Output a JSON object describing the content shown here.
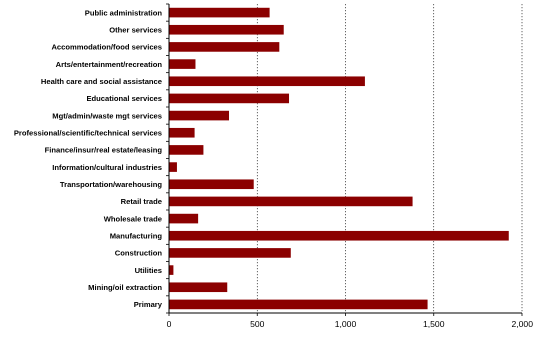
{
  "chart_data": {
    "type": "bar",
    "orientation": "horizontal",
    "categories": [
      "Public administration",
      "Other services",
      "Accommodation/food services",
      "Arts/entertainment/recreation",
      "Health care and social assistance",
      "Educational services",
      "Mgt/admin/waste mgt services",
      "Professional/scientific/technical services",
      "Finance/insur/real estate/leasing",
      "Information/cultural industries",
      "Transportation/warehousing",
      "Retail trade",
      "Wholesale trade",
      "Manufacturing",
      "Construction",
      "Utilities",
      "Mining/oil extraction",
      "Primary"
    ],
    "values": [
      570,
      650,
      625,
      150,
      1110,
      680,
      340,
      145,
      195,
      45,
      480,
      1380,
      165,
      1925,
      690,
      25,
      330,
      1465
    ],
    "xlim": [
      0,
      2000
    ],
    "xticks": [
      0,
      500,
      1000,
      1500,
      2000
    ],
    "xtick_labels": [
      "0",
      "500",
      "1,000",
      "1,500",
      "2,000"
    ],
    "gridlines": "vertical-dashed",
    "bar_color": "#8b0000",
    "title": "",
    "xlabel": "",
    "ylabel": ""
  }
}
